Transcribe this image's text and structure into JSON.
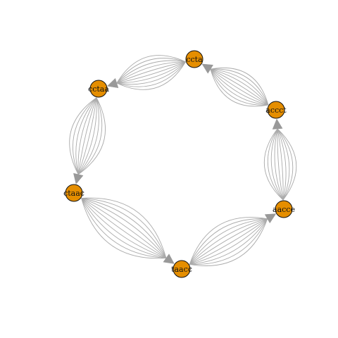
{
  "graph": {
    "node_color": "#e58e00",
    "edge_color": "#aaaaaa",
    "arrow_color": "#999999",
    "nodes": [
      {
        "id": "ccta",
        "label": "ccta"
      },
      {
        "id": "cctaa",
        "label": "cctaa"
      },
      {
        "id": "ctaac",
        "label": "ctaac"
      },
      {
        "id": "taacc",
        "label": "taacc"
      },
      {
        "id": "aacce",
        "label": "aacce"
      },
      {
        "id": "accct",
        "label": "accct"
      }
    ],
    "edges": [
      {
        "from": "ccta",
        "to": "cctaa",
        "multiplicity": 10
      },
      {
        "from": "cctaa",
        "to": "ctaac",
        "multiplicity": 10
      },
      {
        "from": "ctaac",
        "to": "taacc",
        "multiplicity": 10
      },
      {
        "from": "taacc",
        "to": "aacce",
        "multiplicity": 10
      },
      {
        "from": "aacce",
        "to": "accct",
        "multiplicity": 10
      },
      {
        "from": "accct",
        "to": "ccta",
        "multiplicity": 10
      }
    ]
  }
}
